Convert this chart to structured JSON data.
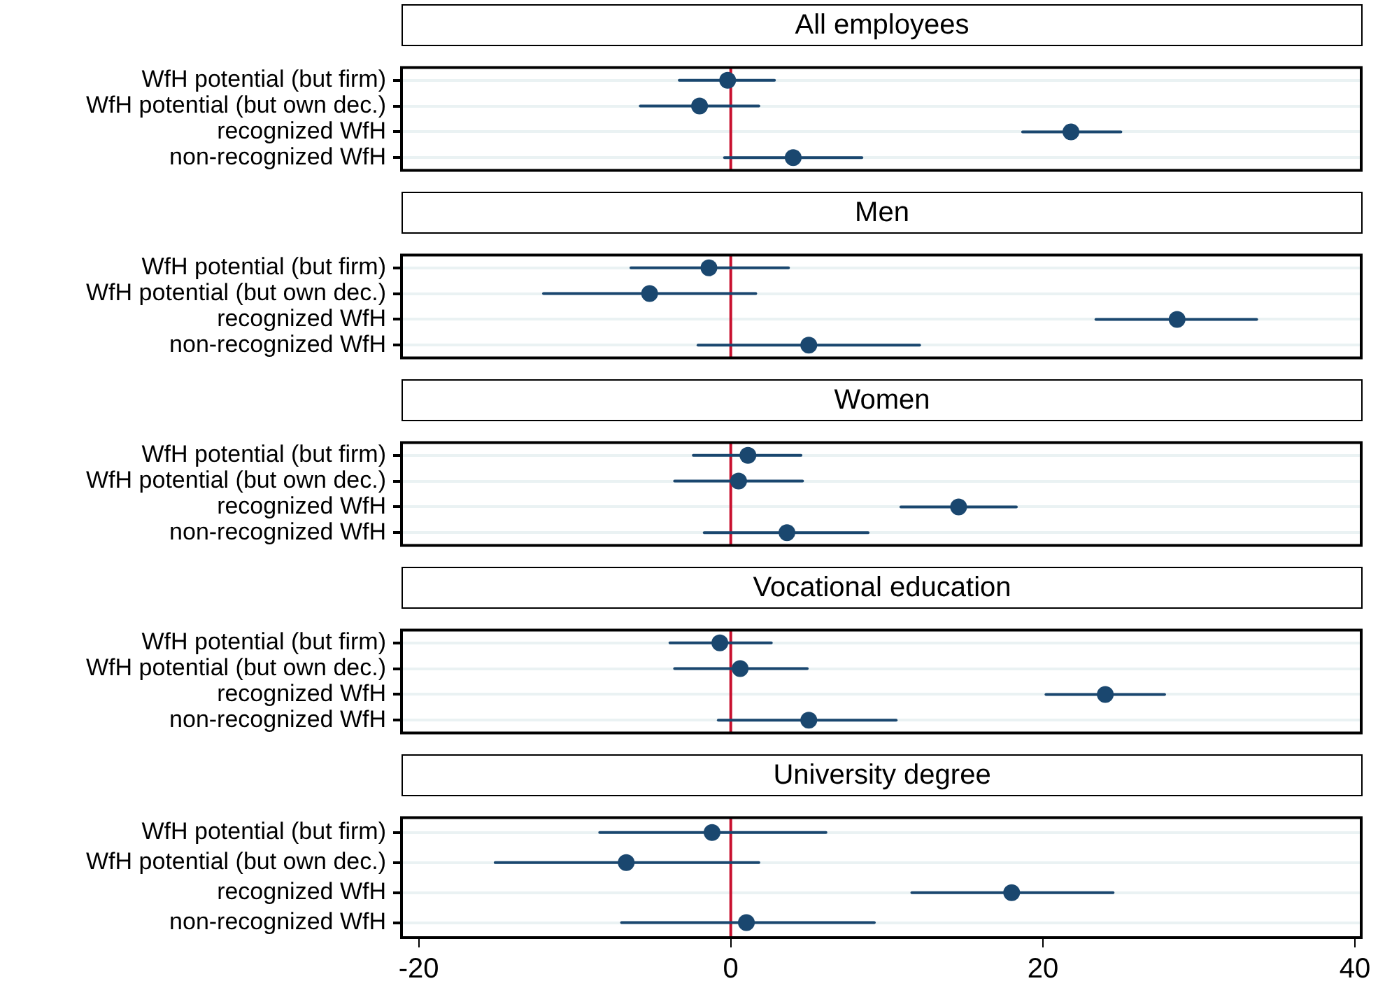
{
  "chart_data": [
    {
      "type": "scatter",
      "orientation": "horizontal",
      "title": "All employees",
      "categories": [
        "WfH potential (but firm)",
        "WfH potential (but own dec.)",
        "recognized WfH",
        "non-recognized WfH"
      ],
      "values": [
        -0.2,
        -2.0,
        21.8,
        4.0
      ],
      "errors": [
        [
          -3.3,
          2.8
        ],
        [
          -5.8,
          1.8
        ],
        [
          18.7,
          25.0
        ],
        [
          -0.4,
          8.4
        ]
      ],
      "color": "#1a476f",
      "marker": "circle",
      "xlim": [
        -21.1,
        40.4
      ],
      "xticks": [
        -20,
        0,
        20,
        40
      ],
      "ref_lines": [
        {
          "axis": "x",
          "value": 0,
          "color": "#c8102e"
        }
      ],
      "grid": "y",
      "tick_labels": "y"
    },
    {
      "type": "scatter",
      "orientation": "horizontal",
      "title": "Men",
      "categories": [
        "WfH potential (but firm)",
        "WfH potential (but own dec.)",
        "recognized WfH",
        "non-recognized WfH"
      ],
      "values": [
        -1.4,
        -5.2,
        28.6,
        5.0
      ],
      "errors": [
        [
          -6.4,
          3.7
        ],
        [
          -12.0,
          1.6
        ],
        [
          23.4,
          33.7
        ],
        [
          -2.1,
          12.1
        ]
      ],
      "color": "#1a476f",
      "marker": "circle",
      "xlim": [
        -21.1,
        40.4
      ],
      "xticks": [
        -20,
        0,
        20,
        40
      ],
      "ref_lines": [
        {
          "axis": "x",
          "value": 0,
          "color": "#c8102e"
        }
      ],
      "grid": "y",
      "tick_labels": "y"
    },
    {
      "type": "scatter",
      "orientation": "horizontal",
      "title": "Women",
      "categories": [
        "WfH potential (but firm)",
        "WfH potential (but own dec.)",
        "recognized WfH",
        "non-recognized WfH"
      ],
      "values": [
        1.1,
        0.5,
        14.6,
        3.6
      ],
      "errors": [
        [
          -2.4,
          4.5
        ],
        [
          -3.6,
          4.6
        ],
        [
          10.9,
          18.3
        ],
        [
          -1.7,
          8.8
        ]
      ],
      "color": "#1a476f",
      "marker": "circle",
      "xlim": [
        -21.1,
        40.4
      ],
      "xticks": [
        -20,
        0,
        20,
        40
      ],
      "ref_lines": [
        {
          "axis": "x",
          "value": 0,
          "color": "#c8102e"
        }
      ],
      "grid": "y",
      "tick_labels": "y"
    },
    {
      "type": "scatter",
      "orientation": "horizontal",
      "title": "Vocational education",
      "categories": [
        "WfH potential (but firm)",
        "WfH potential (but own dec.)",
        "recognized WfH",
        "non-recognized WfH"
      ],
      "values": [
        -0.7,
        0.6,
        24.0,
        5.0
      ],
      "errors": [
        [
          -3.9,
          2.6
        ],
        [
          -3.6,
          4.9
        ],
        [
          20.2,
          27.8
        ],
        [
          -0.8,
          10.6
        ]
      ],
      "color": "#1a476f",
      "marker": "circle",
      "xlim": [
        -21.1,
        40.4
      ],
      "xticks": [
        -20,
        0,
        20,
        40
      ],
      "ref_lines": [
        {
          "axis": "x",
          "value": 0,
          "color": "#c8102e"
        }
      ],
      "grid": "y",
      "tick_labels": "y"
    },
    {
      "type": "scatter",
      "orientation": "horizontal",
      "title": "University degree",
      "categories": [
        "WfH potential (but firm)",
        "WfH potential (but own dec.)",
        "recognized WfH",
        "non-recognized WfH"
      ],
      "values": [
        -1.2,
        -6.7,
        18.0,
        1.0
      ],
      "errors": [
        [
          -8.4,
          6.1
        ],
        [
          -15.1,
          1.8
        ],
        [
          11.6,
          24.5
        ],
        [
          -7.0,
          9.2
        ]
      ],
      "color": "#1a476f",
      "marker": "circle",
      "xlim": [
        -21.1,
        40.4
      ],
      "xticks": [
        -20,
        0,
        20,
        40
      ],
      "ref_lines": [
        {
          "axis": "x",
          "value": 0,
          "color": "#c8102e"
        }
      ],
      "grid": "y"
    }
  ]
}
